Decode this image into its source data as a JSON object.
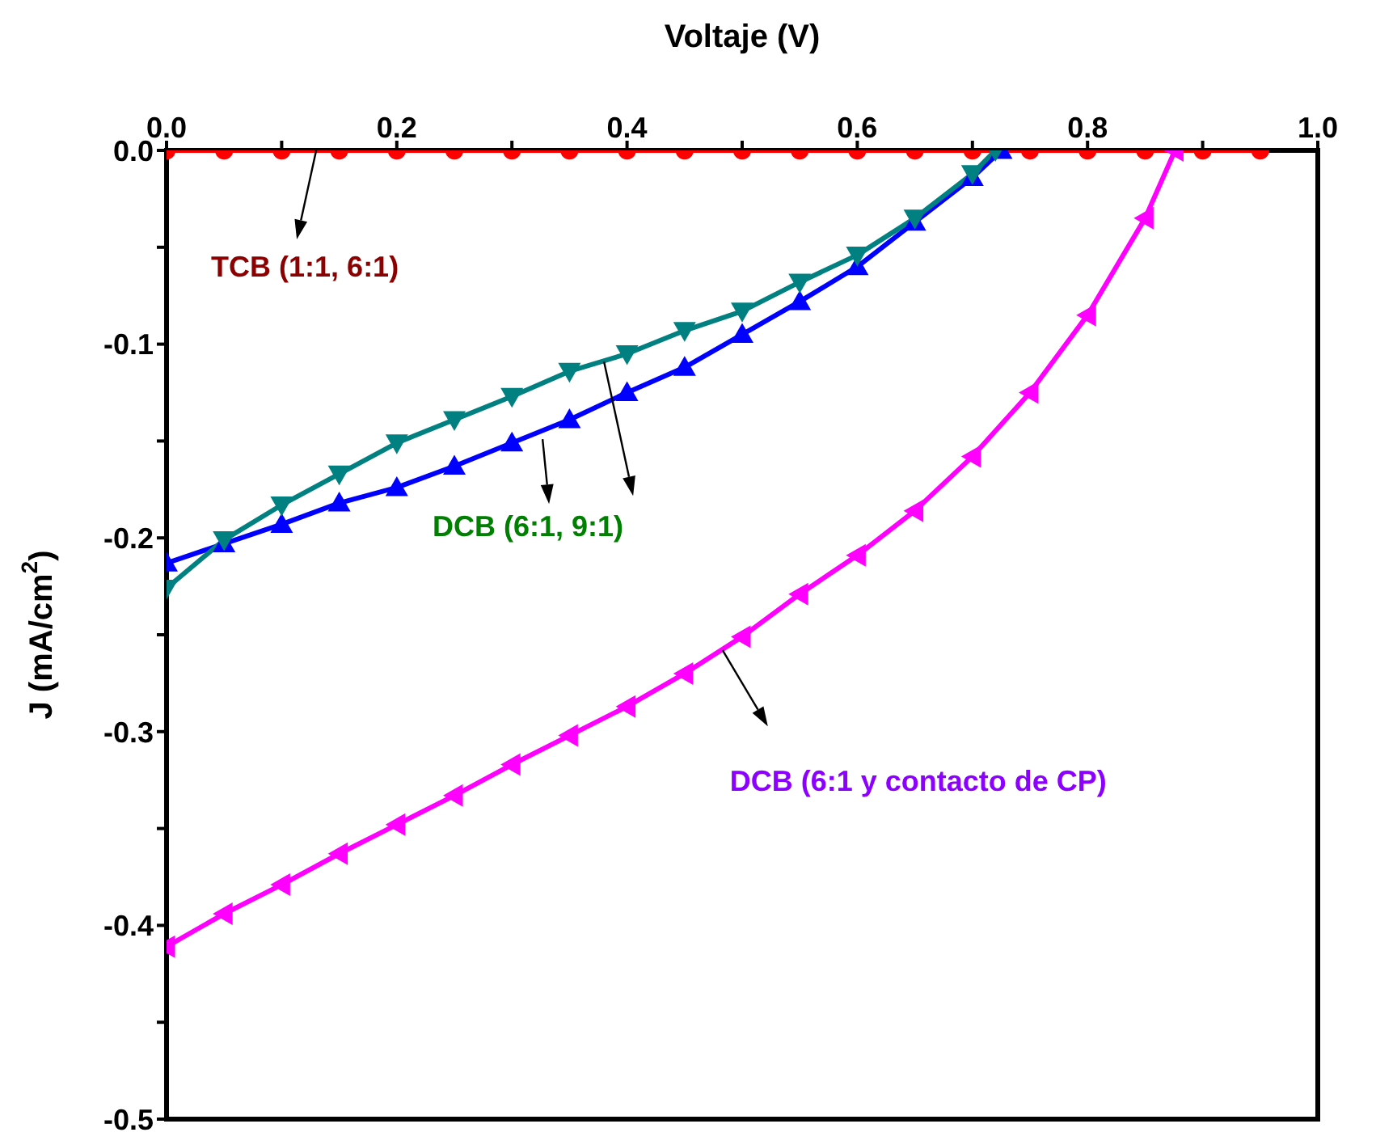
{
  "chart_data": {
    "type": "line",
    "xlabel": "Voltaje (V)",
    "ylabel": "J (mA/cm$^{2}$)",
    "xlim": [
      0,
      1.0
    ],
    "ylim": [
      -0.5,
      0
    ],
    "xticks": [
      {
        "value": 0,
        "label": "0.0"
      },
      {
        "value": 0.1,
        "label": null
      },
      {
        "value": 0.2,
        "label": "0.2"
      },
      {
        "value": 0.3,
        "label": null
      },
      {
        "value": 0.4,
        "label": "0.4"
      },
      {
        "value": 0.5,
        "label": null
      },
      {
        "value": 0.6,
        "label": "0.6"
      },
      {
        "value": 0.7,
        "label": null
      },
      {
        "value": 0.8,
        "label": "0.8"
      },
      {
        "value": 0.9,
        "label": null
      },
      {
        "value": 1.0,
        "label": "1.0"
      }
    ],
    "yticks": [
      {
        "value": 0,
        "label": "0.0"
      },
      {
        "value": -0.05,
        "label": null
      },
      {
        "value": -0.1,
        "label": "-0.1"
      },
      {
        "value": -0.15,
        "label": null
      },
      {
        "value": -0.2,
        "label": "-0.2"
      },
      {
        "value": -0.25,
        "label": null
      },
      {
        "value": -0.3,
        "label": "-0.3"
      },
      {
        "value": -0.35,
        "label": null
      },
      {
        "value": -0.4,
        "label": "-0.4"
      },
      {
        "value": -0.45,
        "label": null
      },
      {
        "value": -0.5,
        "label": "-0.5"
      }
    ],
    "grid": false,
    "legend": false,
    "series": [
      {
        "color": "#ff0000",
        "marker": "circle",
        "x": [
          0,
          0.05,
          0.1,
          0.15,
          0.2,
          0.25,
          0.3,
          0.35,
          0.4,
          0.45,
          0.5,
          0.55,
          0.6,
          0.65,
          0.7,
          0.75,
          0.8,
          0.85,
          0.9,
          0.95
        ],
        "values": [
          0,
          0,
          0,
          0,
          0,
          0,
          0,
          0,
          0,
          0,
          0,
          0,
          0,
          0,
          0,
          0,
          0,
          0,
          0,
          0
        ]
      },
      {
        "color": "#0000ff",
        "marker": "triangle",
        "x": [
          0,
          0.05,
          0.1,
          0.15,
          0.2,
          0.25,
          0.3,
          0.35,
          0.4,
          0.45,
          0.5,
          0.55,
          0.6,
          0.65,
          0.7,
          0.725
        ],
        "values": [
          -0.213,
          -0.203,
          -0.193,
          -0.182,
          -0.174,
          -0.163,
          -0.151,
          -0.139,
          -0.125,
          -0.112,
          -0.095,
          -0.078,
          -0.06,
          -0.037,
          -0.014,
          0
        ]
      },
      {
        "color": "#008080",
        "marker": "triangle-down",
        "x": [
          0,
          0.05,
          0.1,
          0.15,
          0.2,
          0.25,
          0.3,
          0.35,
          0.4,
          0.45,
          0.5,
          0.55,
          0.6,
          0.65,
          0.7,
          0.72
        ],
        "values": [
          -0.226,
          -0.201,
          -0.183,
          -0.167,
          -0.151,
          -0.139,
          -0.127,
          -0.114,
          -0.105,
          -0.093,
          -0.083,
          -0.068,
          -0.054,
          -0.035,
          -0.012,
          0
        ]
      },
      {
        "color": "#ff00ff",
        "marker": "triangle-left",
        "x": [
          0,
          0.05,
          0.1,
          0.15,
          0.2,
          0.25,
          0.3,
          0.35,
          0.4,
          0.45,
          0.5,
          0.55,
          0.6,
          0.65,
          0.7,
          0.75,
          0.8,
          0.85,
          0.876
        ],
        "values": [
          -0.411,
          -0.394,
          -0.379,
          -0.363,
          -0.348,
          -0.333,
          -0.317,
          -0.302,
          -0.287,
          -0.27,
          -0.251,
          -0.229,
          -0.209,
          -0.186,
          -0.158,
          -0.125,
          -0.085,
          -0.035,
          0
        ]
      }
    ],
    "annotations": [
      {
        "text": "TCB (1:1, 6:1)",
        "x": 0.13,
        "y": 0
      },
      {
        "text": "DCB (6:1, 9:1)",
        "x": 0.38,
        "y": -0.109
      },
      "DCB (6:1 y contacto de CP)"
    ]
  }
}
